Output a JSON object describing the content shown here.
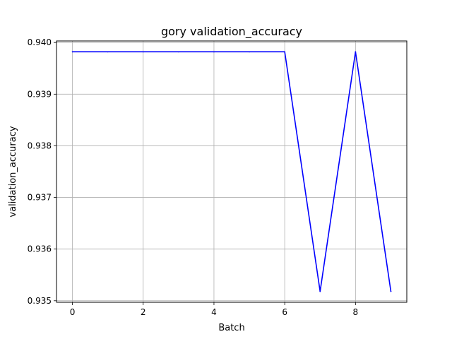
{
  "chart_data": {
    "type": "line",
    "title": "gory validation_accuracy",
    "xlabel": "Batch",
    "ylabel": "validation_accuracy",
    "xlim": [
      -0.45,
      9.45
    ],
    "ylim": [
      0.93497,
      0.94003
    ],
    "xticks": [
      0,
      2,
      4,
      6,
      8
    ],
    "yticks": [
      0.935,
      0.936,
      0.937,
      0.938,
      0.939,
      0.94
    ],
    "ytick_labels": [
      "0.935",
      "0.936",
      "0.937",
      "0.938",
      "0.939",
      "0.940"
    ],
    "grid": true,
    "series": [
      {
        "color": "#0000ff",
        "x": [
          0,
          1,
          2,
          3,
          4,
          5,
          6,
          7,
          8,
          9
        ],
        "y": [
          0.93982,
          0.93982,
          0.93982,
          0.93982,
          0.93982,
          0.93982,
          0.93982,
          0.93518,
          0.93982,
          0.93518
        ]
      }
    ]
  }
}
